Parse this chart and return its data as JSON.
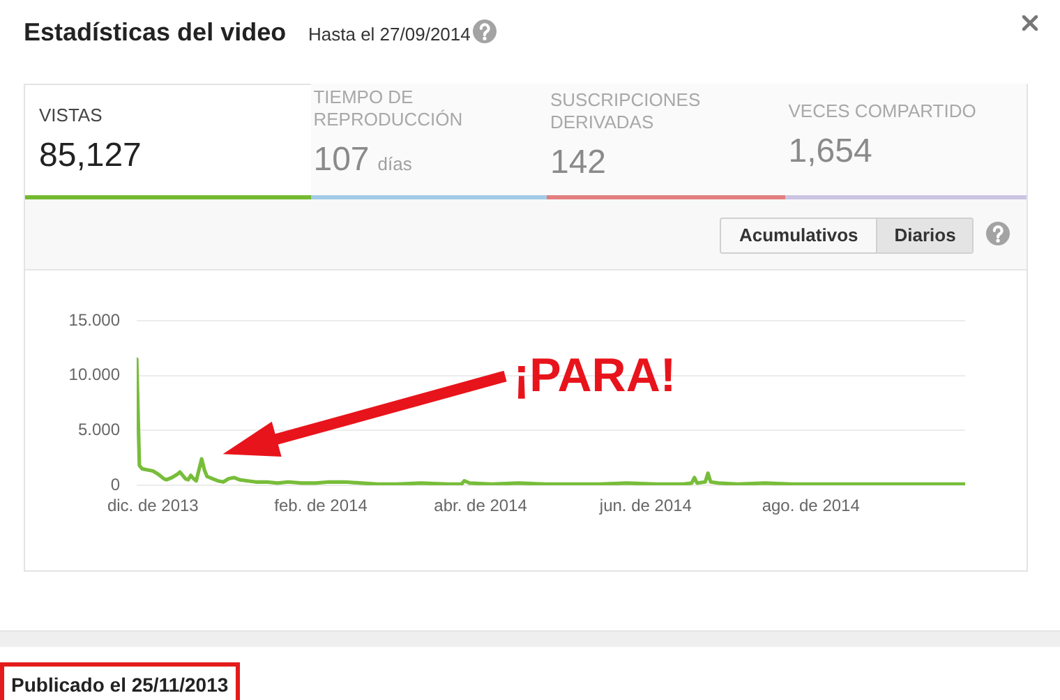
{
  "chart_data": [
    {
      "type": "other",
      "title": "Estadísticas del video",
      "subtitle": "Hasta el 27/09/2014",
      "annotations": [
        "VISTAS",
        "85,127",
        "TIEMPO DE REPRODUCCIÓN",
        "107 días",
        "SUSCRIPCIONES DERIVADAS",
        "142",
        "VECES COMPARTIDO",
        "1,654"
      ]
    },
    {
      "type": "line",
      "x": [
        "2013-11-25",
        "2013-11-26",
        "2013-11-27",
        "2013-11-29",
        "2013-12-01",
        "2013-12-03",
        "2013-12-05",
        "2013-12-06",
        "2013-12-08",
        "2013-12-10",
        "2013-12-11",
        "2013-12-12",
        "2013-12-13",
        "2013-12-14",
        "2013-12-15",
        "2013-12-16",
        "2013-12-17",
        "2013-12-19",
        "2013-12-20",
        "2013-12-21",
        "2013-12-23",
        "2013-12-25",
        "2013-12-27",
        "2013-12-29",
        "2013-12-31",
        "2014-01-02",
        "2014-01-05",
        "2014-01-08",
        "2014-01-12",
        "2014-01-16",
        "2014-01-20",
        "2014-01-25",
        "2014-01-30",
        "2014-02-04",
        "2014-02-10",
        "2014-02-16",
        "2014-02-22",
        "2014-03-01",
        "2014-03-10",
        "2014-03-20",
        "2014-03-25",
        "2014-03-26",
        "2014-03-28",
        "2014-04-05",
        "2014-04-15",
        "2014-04-25",
        "2014-05-05",
        "2014-05-15",
        "2014-05-25",
        "2014-06-05",
        "2014-06-10",
        "2014-06-15",
        "2014-06-18",
        "2014-06-19",
        "2014-06-20",
        "2014-06-23",
        "2014-06-24",
        "2014-06-25",
        "2014-06-28",
        "2014-07-05",
        "2014-07-15",
        "2014-07-25",
        "2014-08-05",
        "2014-08-15",
        "2014-08-25",
        "2014-09-05",
        "2014-09-15",
        "2014-09-27"
      ],
      "values": [
        11500,
        1800,
        1500,
        1400,
        1300,
        1000,
        600,
        500,
        700,
        1000,
        1200,
        900,
        600,
        500,
        900,
        600,
        400,
        2400,
        1400,
        800,
        600,
        400,
        300,
        600,
        700,
        500,
        400,
        300,
        300,
        200,
        300,
        200,
        200,
        300,
        300,
        200,
        100,
        100,
        200,
        100,
        100,
        400,
        200,
        100,
        200,
        100,
        100,
        100,
        200,
        100,
        100,
        100,
        200,
        700,
        200,
        300,
        1100,
        300,
        200,
        100,
        200,
        100,
        100,
        100,
        100,
        100,
        100,
        100
      ],
      "color": "#78bd3a",
      "xlim": [
        "2013-11-25",
        "2014-09-27"
      ],
      "xticks": [
        {
          "value": "2013-12-01",
          "label": "dic. de 2013"
        },
        {
          "value": "2014-02-01",
          "label": "feb. de 2014"
        },
        {
          "value": "2014-04-01",
          "label": "abr. de 2014"
        },
        {
          "value": "2014-06-01",
          "label": "jun. de 2014"
        },
        {
          "value": "2014-08-01",
          "label": "ago. de 2014"
        }
      ],
      "ylim": [
        0,
        15000
      ],
      "yticks": [
        0,
        {
          "value": 5000,
          "label": "5.000"
        },
        {
          "value": 10000,
          "label": "10.000"
        },
        {
          "value": 15000,
          "label": "15.000"
        }
      ],
      "grid": "y",
      "annotations": [
        "Acumulativos",
        "Diarios",
        "¡PARA!",
        "Publicado el 25/11/2013"
      ]
    }
  ]
}
